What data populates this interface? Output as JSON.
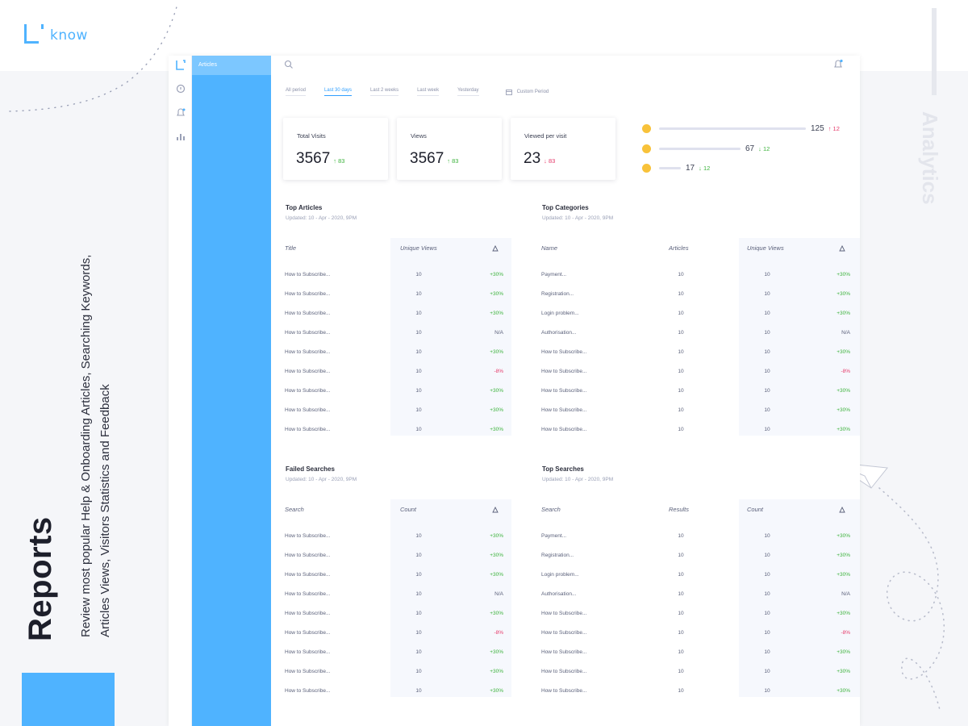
{
  "brand": {
    "logo_text": "know"
  },
  "caption": {
    "title": "Reports",
    "description": "Review most popular Help & Onboarding Articles, Searching Keywords, Articles Views, Visitors Statistics and Feedback"
  },
  "side_label": "Analytics",
  "nav": {
    "rail_icons": [
      "logo-icon",
      "chat-icon",
      "bell-icon",
      "bar-chart-icon"
    ],
    "panel_items": [
      "Articles"
    ]
  },
  "toolbar": {
    "search_icon": "search-icon",
    "bell_icon": "bell-icon"
  },
  "periods": {
    "items": [
      "All period",
      "Last 30 days",
      "Last 2 weeks",
      "Last week",
      "Yesterday"
    ],
    "active_index": 1,
    "custom_label": "Custom Period"
  },
  "stats": [
    {
      "label": "Total Visits",
      "value": "3567",
      "delta": "↑ 83",
      "trend": "up"
    },
    {
      "label": "Views",
      "value": "3567",
      "delta": "↑ 83",
      "trend": "up"
    },
    {
      "label": "Viewed per visit",
      "value": "23",
      "delta": "↓ 83",
      "trend": "down"
    }
  ],
  "feedback": [
    {
      "face": "happy-face-icon",
      "count": "125",
      "delta": "↑ 12",
      "trend": "down",
      "level": 1.0
    },
    {
      "face": "neutral-face-icon",
      "count": "67",
      "delta": "↓ 12",
      "trend": "up",
      "level": 0.54
    },
    {
      "face": "sad-face-icon",
      "count": "17",
      "delta": "↓ 12",
      "trend": "up",
      "level": 0.12
    }
  ],
  "top_articles": {
    "title": "Top Articles",
    "updated": "Updated: 10 - Apr - 2020, 9PM",
    "headers": [
      "Title",
      "Unique Views"
    ],
    "rows": [
      [
        "How to Subscribe...",
        "10",
        "+30%"
      ],
      [
        "How to Subscribe...",
        "10",
        "+30%"
      ],
      [
        "How to Subscribe...",
        "10",
        "+30%"
      ],
      [
        "How to Subscribe...",
        "10",
        "N/A"
      ],
      [
        "How to Subscribe...",
        "10",
        "+30%"
      ],
      [
        "How to Subscribe...",
        "10",
        "-8%"
      ],
      [
        "How to Subscribe...",
        "10",
        "+30%"
      ],
      [
        "How to Subscribe...",
        "10",
        "+30%"
      ],
      [
        "How to Subscribe...",
        "10",
        "+30%"
      ]
    ]
  },
  "top_categories": {
    "title": "Top Categories",
    "updated": "Updated: 10 - Apr - 2020, 9PM",
    "headers": [
      "Name",
      "Articles",
      "Unique Views"
    ],
    "rows": [
      [
        "Payment...",
        "10",
        "10",
        "+30%"
      ],
      [
        "Registration...",
        "10",
        "10",
        "+30%"
      ],
      [
        "Login problem...",
        "10",
        "10",
        "+30%"
      ],
      [
        "Authorisation...",
        "10",
        "10",
        "N/A"
      ],
      [
        "How to Subscribe...",
        "10",
        "10",
        "+30%"
      ],
      [
        "How to Subscribe...",
        "10",
        "10",
        "-8%"
      ],
      [
        "How to Subscribe...",
        "10",
        "10",
        "+30%"
      ],
      [
        "How to Subscribe...",
        "10",
        "10",
        "+30%"
      ],
      [
        "How to Subscribe...",
        "10",
        "10",
        "+30%"
      ]
    ]
  },
  "failed_searches": {
    "title": "Failed Searches",
    "updated": "Updated: 10 - Apr - 2020, 9PM",
    "headers": [
      "Search",
      "Count"
    ],
    "rows": [
      [
        "How to Subscribe...",
        "10",
        "+30%"
      ],
      [
        "How to Subscribe...",
        "10",
        "+30%"
      ],
      [
        "How to Subscribe...",
        "10",
        "+30%"
      ],
      [
        "How to Subscribe...",
        "10",
        "N/A"
      ],
      [
        "How to Subscribe...",
        "10",
        "+30%"
      ],
      [
        "How to Subscribe...",
        "10",
        "-8%"
      ],
      [
        "How to Subscribe...",
        "10",
        "+30%"
      ],
      [
        "How to Subscribe...",
        "10",
        "+30%"
      ],
      [
        "How to Subscribe...",
        "10",
        "+30%"
      ]
    ]
  },
  "top_searches": {
    "title": "Top Searches",
    "updated": "Updated: 10 - Apr - 2020, 9PM",
    "headers": [
      "Search",
      "Results",
      "Count"
    ],
    "rows": [
      [
        "Payment...",
        "10",
        "10",
        "+30%"
      ],
      [
        "Registration...",
        "10",
        "10",
        "+30%"
      ],
      [
        "Login problem...",
        "10",
        "10",
        "+30%"
      ],
      [
        "Authorisation...",
        "10",
        "10",
        "N/A"
      ],
      [
        "How to Subscribe...",
        "10",
        "10",
        "+30%"
      ],
      [
        "How to Subscribe...",
        "10",
        "10",
        "-8%"
      ],
      [
        "How to Subscribe...",
        "10",
        "10",
        "+30%"
      ],
      [
        "How to Subscribe...",
        "10",
        "10",
        "+30%"
      ],
      [
        "How to Subscribe...",
        "10",
        "10",
        "+30%"
      ]
    ]
  },
  "colors": {
    "accent": "#4fb3ff",
    "positive": "#3db33d",
    "negative": "#e53a6a",
    "face": "#f8c23a"
  }
}
